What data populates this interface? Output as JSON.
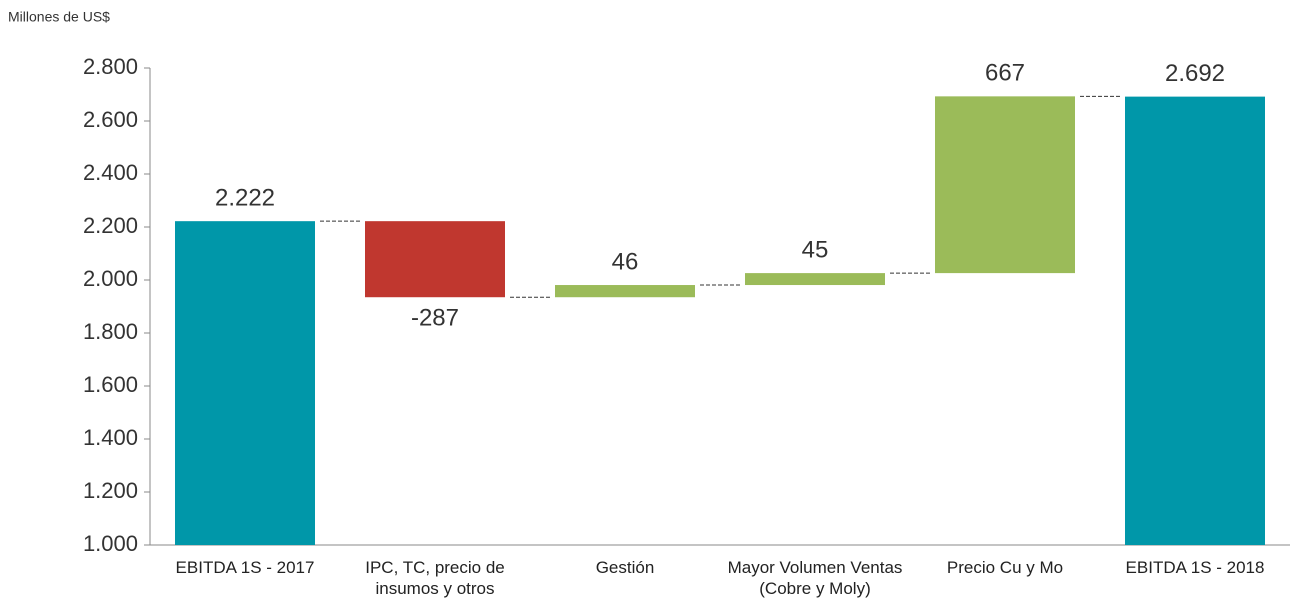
{
  "chart_data": {
    "type": "waterfall",
    "ylabel": "Millones de US$",
    "categories": [
      "EBITDA 1S - 2017",
      "IPC, TC, precio de insumos y otros",
      "Gestión",
      "Mayor Volumen Ventas (Cobre y Moly)",
      "Precio Cu y Mo",
      "EBITDA 1S - 2018"
    ],
    "values": [
      2222,
      -287,
      46,
      45,
      667,
      2692
    ],
    "value_labels": [
      "2.222",
      "-287",
      "46",
      "45",
      "667",
      "2.692"
    ],
    "is_total": [
      true,
      false,
      false,
      false,
      false,
      true
    ],
    "colors": [
      "#0097a9",
      "#c0372f",
      "#9bbb59",
      "#9bbb59",
      "#9bbb59",
      "#0097a9"
    ],
    "ylim": [
      1000,
      2800
    ],
    "yticks": [
      {
        "value": 1000,
        "label": "1.000"
      },
      {
        "value": 1200,
        "label": "1.200"
      },
      {
        "value": 1400,
        "label": "1.400"
      },
      {
        "value": 1600,
        "label": "1.600"
      },
      {
        "value": 1800,
        "label": "1.800"
      },
      {
        "value": 2000,
        "label": "2.000"
      },
      {
        "value": 2200,
        "label": "2.200"
      },
      {
        "value": 2400,
        "label": "2.400"
      },
      {
        "value": 2600,
        "label": "2.600"
      },
      {
        "value": 2800,
        "label": "2.800"
      }
    ]
  }
}
